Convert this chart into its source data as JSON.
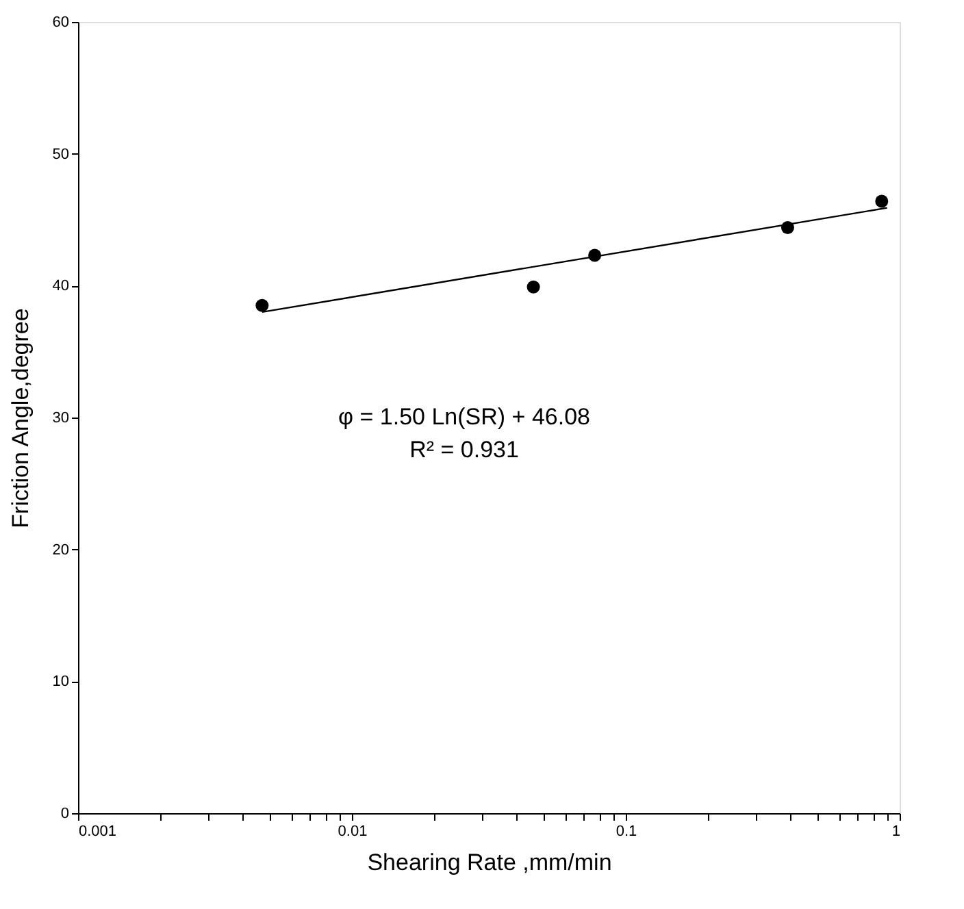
{
  "chart_data": {
    "type": "scatter",
    "xlabel": "Shearing Rate ,mm/min",
    "ylabel": "Friction Angle,degree",
    "log": "x",
    "xlim": [
      0.001,
      1
    ],
    "ylim": [
      0,
      60
    ],
    "xticks": [
      0.001,
      {
        "value": 0.002,
        "label": null
      },
      {
        "value": 0.003,
        "label": null
      },
      {
        "value": 0.004,
        "label": null
      },
      {
        "value": 0.005,
        "label": null
      },
      {
        "value": 0.006,
        "label": null
      },
      {
        "value": 0.007,
        "label": null
      },
      {
        "value": 0.008,
        "label": null
      },
      {
        "value": 0.009,
        "label": null
      },
      0.01,
      {
        "value": 0.02,
        "label": null
      },
      {
        "value": 0.03,
        "label": null
      },
      {
        "value": 0.04,
        "label": null
      },
      {
        "value": 0.05,
        "label": null
      },
      {
        "value": 0.06,
        "label": null
      },
      {
        "value": 0.07,
        "label": null
      },
      {
        "value": 0.08,
        "label": null
      },
      {
        "value": 0.09,
        "label": null
      },
      0.1,
      {
        "value": 0.2,
        "label": null
      },
      {
        "value": 0.3,
        "label": null
      },
      {
        "value": 0.4,
        "label": null
      },
      {
        "value": 0.5,
        "label": null
      },
      {
        "value": 0.6,
        "label": null
      },
      {
        "value": 0.7,
        "label": null
      },
      {
        "value": 0.8,
        "label": null
      },
      {
        "value": 0.9,
        "label": null
      },
      1
    ],
    "yticks": [
      0,
      10,
      20,
      30,
      40,
      50,
      60
    ],
    "grid": false,
    "marker": "circle",
    "series": [
      {
        "color": "#000000",
        "x": [
          0.0047,
          0.046,
          0.077,
          0.39,
          0.86
        ],
        "values": [
          38.5,
          39.9,
          42.3,
          44.4,
          46.4
        ]
      },
      {
        "type": "line",
        "color": "#000000",
        "line_style": "solid",
        "marker": "none",
        "x": [
          0.0047,
          0.9
        ],
        "values": [
          38.0,
          45.9
        ]
      }
    ],
    "annotations": [
      "φ = 1.50 Ln(SR) + 46.08",
      "R² = 0.931"
    ]
  }
}
